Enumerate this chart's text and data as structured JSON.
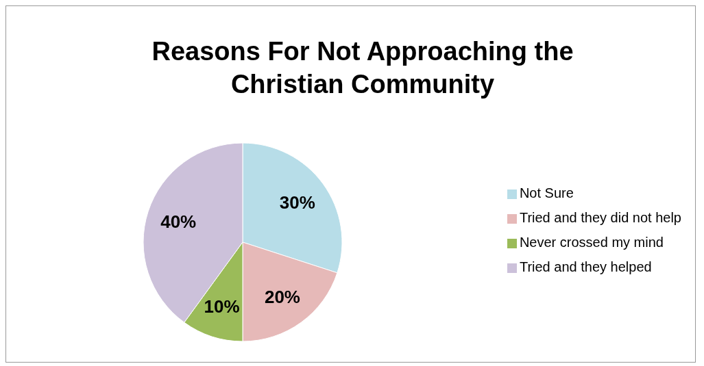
{
  "chart_data": {
    "type": "pie",
    "title": "Reasons For Not Approaching the Christian Community",
    "categories": [
      "Not Sure",
      "Tried and they did not help",
      "Never crossed my mind",
      "Tried and they helped"
    ],
    "values": [
      30,
      20,
      10,
      40
    ],
    "colors": [
      "#b7dde8",
      "#e6b9b8",
      "#9bbb59",
      "#ccc1da"
    ],
    "value_labels": [
      "30%",
      "20%",
      "10%",
      "40%"
    ],
    "legend": "right"
  }
}
